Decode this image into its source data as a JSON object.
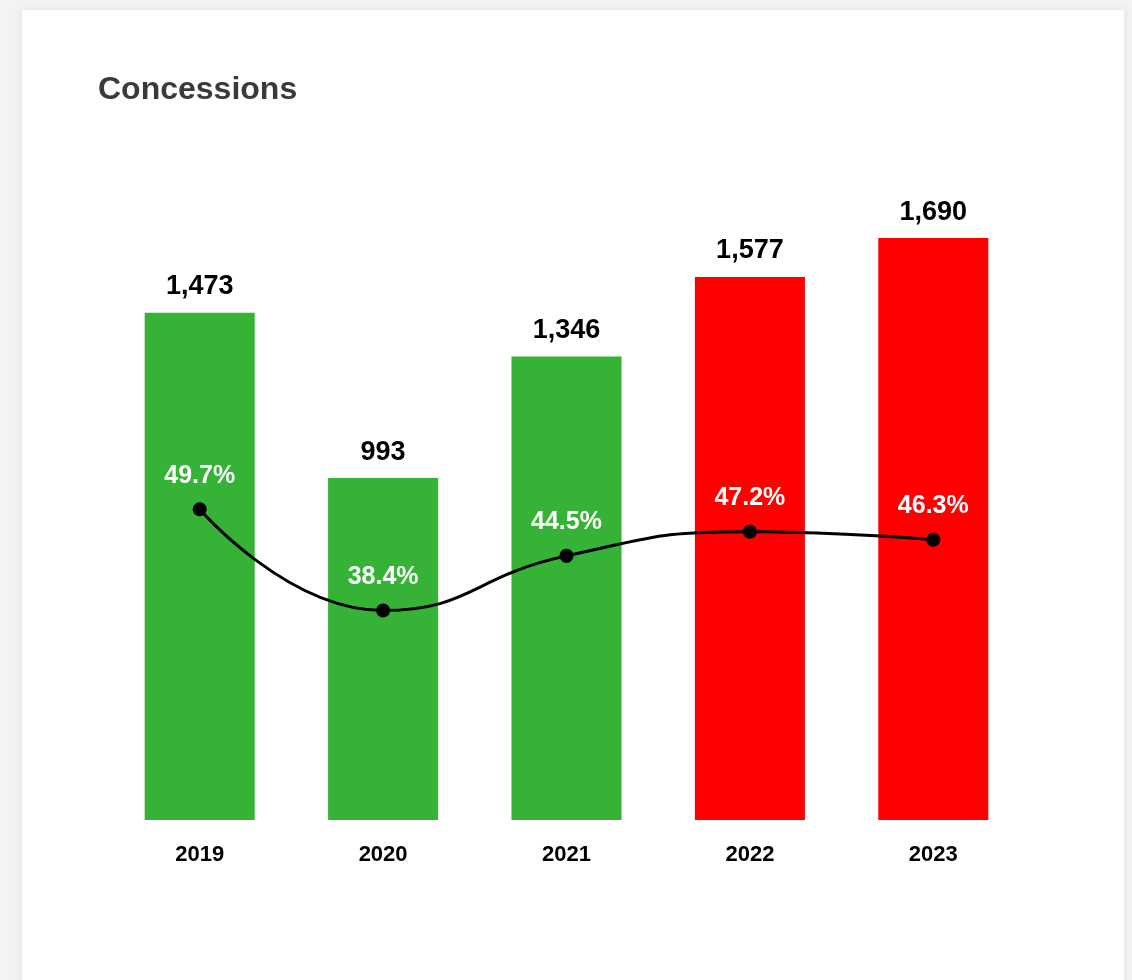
{
  "chart_data": {
    "type": "bar",
    "title": "Concessions",
    "categories": [
      "2019",
      "2020",
      "2021",
      "2022",
      "2023"
    ],
    "series": [
      {
        "colors": [
          "#36b336",
          "#36b336",
          "#36b336",
          "#ff0000",
          "#ff0000"
        ],
        "values": [
          1473,
          993,
          1346,
          1577,
          1690
        ],
        "value_labels": [
          "1,473",
          "993",
          "1,346",
          "1,577",
          "1,690"
        ]
      },
      {
        "type": "line",
        "axis": "y2",
        "color": "#000000",
        "values": [
          49.7,
          38.4,
          44.5,
          47.2,
          46.3
        ],
        "value_labels": [
          "49.7%",
          "38.4%",
          "44.5%",
          "47.2%",
          "46.3%"
        ]
      }
    ],
    "y2lim": [
      15,
      80
    ],
    "tick_labels": "x",
    "grid": false,
    "marker": "circle",
    "line_style": "solid"
  }
}
